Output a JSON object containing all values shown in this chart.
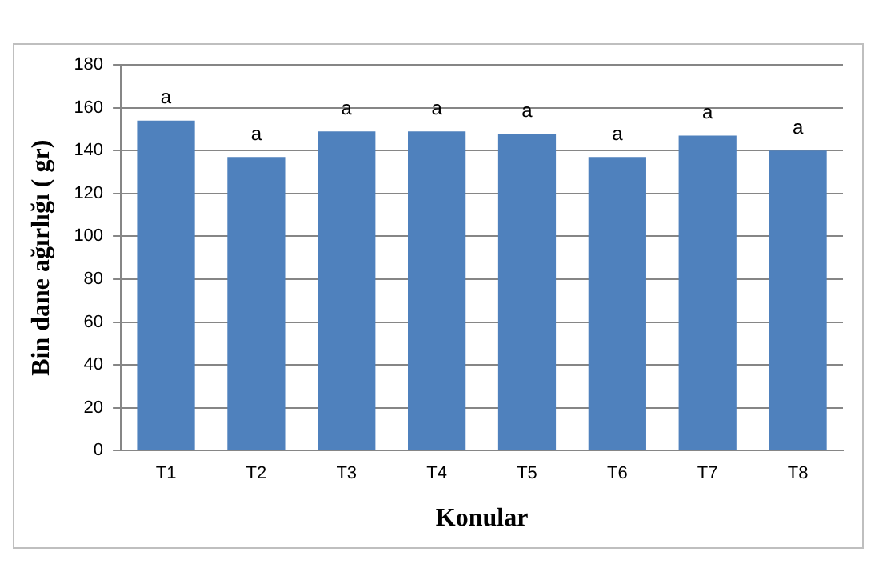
{
  "chart_data": {
    "type": "bar",
    "xlabel": "Konular",
    "ylabel": "Bin dane ağırlığı ( gr)",
    "categories": [
      "T1",
      "T2",
      "T3",
      "T4",
      "T5",
      "T6",
      "T7",
      "T8"
    ],
    "series": [
      {
        "color": "#4f81bd",
        "values": [
          154,
          137,
          149,
          149,
          148,
          137,
          147,
          140
        ],
        "value_labels": [
          "a",
          "a",
          "a",
          "a",
          "a",
          "a",
          "a",
          "a"
        ]
      }
    ],
    "ylim": [
      0,
      180
    ],
    "yticks": [
      0,
      20,
      40,
      60,
      80,
      100,
      120,
      140,
      160,
      180
    ],
    "grid": "y",
    "legend": false
  }
}
